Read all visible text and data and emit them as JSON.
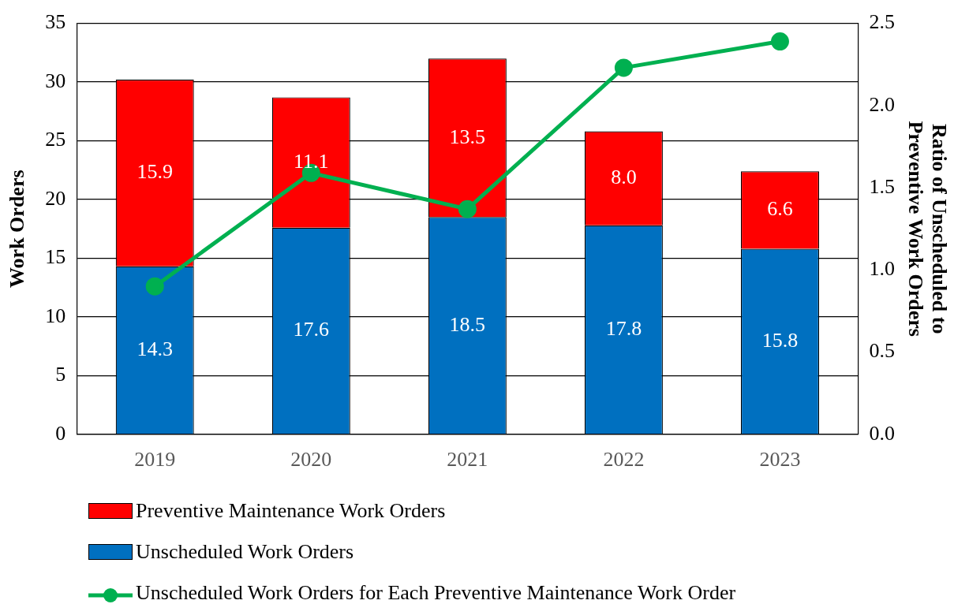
{
  "chart_data": {
    "type": "bar",
    "stacked": true,
    "ylabel": "Work Orders",
    "y2label": "Ratio of Unscheduled to Preventive Work Orders",
    "categories": [
      "2019",
      "2020",
      "2021",
      "2022",
      "2023"
    ],
    "series": [
      {
        "name": "Unscheduled Work Orders",
        "color": "#0070c0",
        "values": [
          14.3,
          17.6,
          18.5,
          17.8,
          15.8
        ],
        "value_labels": [
          "14.3",
          "17.6",
          "18.5",
          "17.8",
          "15.8"
        ]
      },
      {
        "name": "Preventive Maintenance Work Orders",
        "color": "#ff0000",
        "values": [
          15.9,
          11.1,
          13.5,
          8.0,
          6.6
        ],
        "value_labels": [
          "15.9",
          "11.1",
          "13.5",
          "8.0",
          "6.6"
        ]
      },
      {
        "name": "Unscheduled Work Orders for Each Preventive Maintenance Work Order",
        "type": "line",
        "axis": "y2",
        "color": "#00b050",
        "marker": "circle",
        "line_style": "solid",
        "values": [
          0.9,
          1.59,
          1.37,
          2.23,
          2.39
        ]
      }
    ],
    "ylim": [
      0,
      35
    ],
    "yticks": [
      0,
      5,
      10,
      15,
      20,
      25,
      30,
      35
    ],
    "y2lim": [
      0,
      2.5
    ],
    "y2ticks": [
      {
        "value": 0,
        "label": "0.0"
      },
      {
        "value": 0.5,
        "label": "0.5"
      },
      {
        "value": 1,
        "label": "1.0"
      },
      {
        "value": 1.5,
        "label": "1.5"
      },
      {
        "value": 2,
        "label": "2.0"
      },
      {
        "value": 2.5,
        "label": "2.5"
      }
    ],
    "grid": "y",
    "legend": "bottom"
  }
}
